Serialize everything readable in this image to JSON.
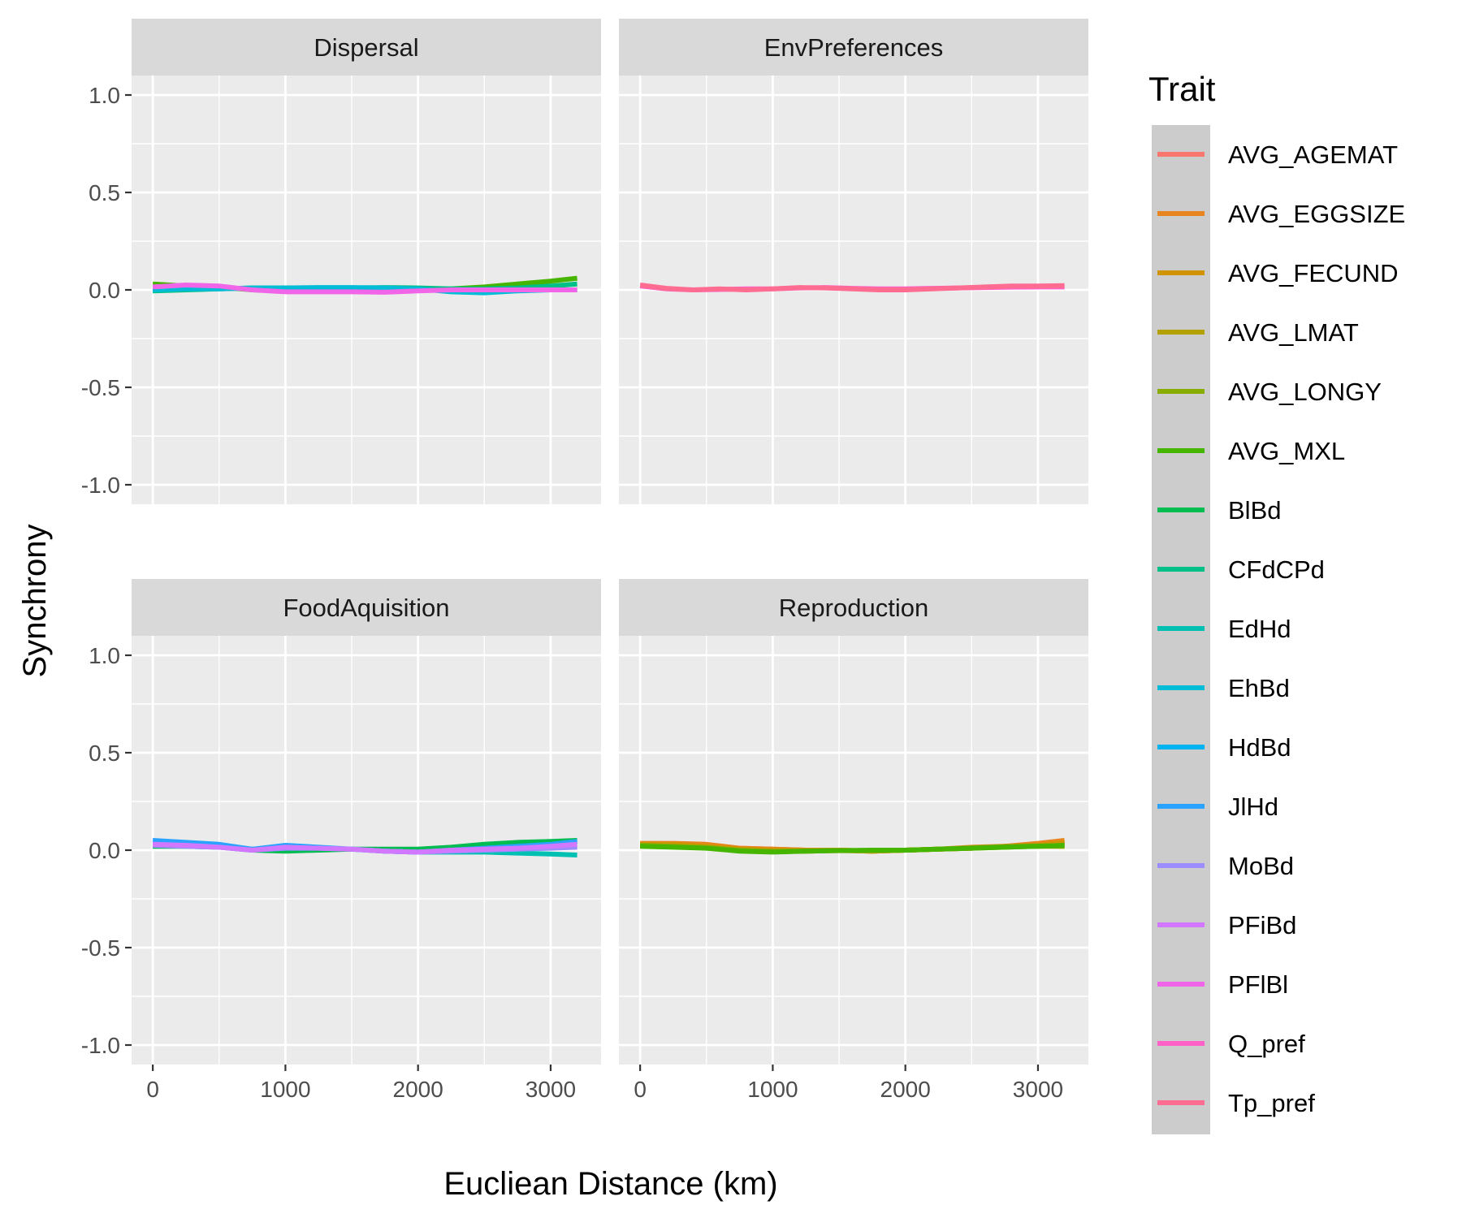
{
  "chart_data": {
    "type": "line",
    "xlabel": "Eucliean Distance (km)",
    "ylabel": "Synchrony",
    "xlim": [
      -160,
      3380
    ],
    "ylim": [
      -1.1,
      1.1
    ],
    "x_ticks": [
      0,
      1000,
      2000,
      3000
    ],
    "x_tick_labels": [
      "0",
      "1000",
      "2000",
      "3000"
    ],
    "y_ticks": [
      -1.0,
      -0.5,
      0.0,
      0.5,
      1.0
    ],
    "y_tick_labels": [
      "-1.0",
      "-0.5",
      "0.0",
      "0.5",
      "1.0"
    ],
    "grid": true,
    "legend": {
      "title": "Trait",
      "position": "right",
      "entries": [
        {
          "name": "AVG_AGEMAT",
          "color": "#F8766D"
        },
        {
          "name": "AVG_EGGSIZE",
          "color": "#E7851E"
        },
        {
          "name": "AVG_FECUND",
          "color": "#D09400"
        },
        {
          "name": "AVG_LMAT",
          "color": "#B2A100"
        },
        {
          "name": "AVG_LONGY",
          "color": "#89AC00"
        },
        {
          "name": "AVG_MXL",
          "color": "#45B500"
        },
        {
          "name": "BlBd",
          "color": "#00BC51"
        },
        {
          "name": "CFdCPd",
          "color": "#00C087"
        },
        {
          "name": "EdHd",
          "color": "#00C0B2"
        },
        {
          "name": "EhBd",
          "color": "#00BCD6"
        },
        {
          "name": "HdBd",
          "color": "#00B3F2"
        },
        {
          "name": "JlHd",
          "color": "#29A3FF"
        },
        {
          "name": "MoBd",
          "color": "#9C8DFF"
        },
        {
          "name": "PFiBd",
          "color": "#D277FF"
        },
        {
          "name": "PFlBl",
          "color": "#F166E8"
        },
        {
          "name": "Q_pref",
          "color": "#FF61C7"
        },
        {
          "name": "Tp_pref",
          "color": "#FF6C91"
        }
      ]
    },
    "panels": [
      {
        "title": "Dispersal",
        "series": [
          {
            "name": "AVG_MXL",
            "x": [
              0,
              250,
              500,
              750,
              1000,
              1250,
              1500,
              1750,
              2000,
              2250,
              2500,
              2750,
              3000,
              3200
            ],
            "y": [
              0.03,
              0.02,
              0.015,
              0.0,
              -0.005,
              -0.005,
              -0.002,
              0.0,
              0.002,
              0.005,
              0.015,
              0.03,
              0.045,
              0.06
            ]
          },
          {
            "name": "CFdCPd",
            "x": [
              0,
              250,
              500,
              750,
              1000,
              1250,
              1500,
              1750,
              2000,
              2250,
              2500,
              2750,
              3000,
              3200
            ],
            "y": [
              -0.005,
              0.0,
              0.005,
              0.01,
              0.01,
              0.01,
              0.01,
              0.012,
              0.01,
              0.005,
              0.005,
              0.01,
              0.02,
              0.03
            ]
          },
          {
            "name": "EhBd",
            "x": [
              0,
              250,
              500,
              750,
              1000,
              1250,
              1500,
              1750,
              2000,
              2250,
              2500,
              2750,
              3000,
              3200
            ],
            "y": [
              0.0,
              0.005,
              0.005,
              0.01,
              0.01,
              0.012,
              0.012,
              0.01,
              0.005,
              -0.01,
              -0.015,
              -0.005,
              0.0,
              0.0
            ]
          },
          {
            "name": "PFlBl",
            "x": [
              0,
              250,
              500,
              750,
              1000,
              1250,
              1500,
              1750,
              2000,
              2250,
              2500,
              2750,
              3000,
              3200
            ],
            "y": [
              0.015,
              0.025,
              0.02,
              0.0,
              -0.01,
              -0.01,
              -0.01,
              -0.012,
              -0.005,
              0.0,
              0.0,
              0.0,
              0.0,
              0.0
            ]
          }
        ]
      },
      {
        "title": "EnvPreferences",
        "series": [
          {
            "name": "Q_pref",
            "x": [
              0,
              200,
              400,
              600,
              800,
              1000,
              1200,
              1400,
              1600,
              1800,
              2000,
              2200,
              2400,
              2600,
              2800,
              3000,
              3200
            ],
            "y": [
              0.02,
              0.005,
              0.0,
              0.002,
              0.005,
              0.005,
              0.01,
              0.012,
              0.008,
              0.005,
              0.005,
              0.008,
              0.01,
              0.012,
              0.014,
              0.015,
              0.015
            ]
          },
          {
            "name": "Tp_pref",
            "x": [
              0,
              200,
              400,
              600,
              800,
              1000,
              1200,
              1400,
              1600,
              1800,
              2000,
              2200,
              2400,
              2600,
              2800,
              3000,
              3200
            ],
            "y": [
              0.025,
              0.008,
              0.0,
              0.005,
              0.0,
              0.005,
              0.012,
              0.01,
              0.005,
              0.0,
              0.0,
              0.005,
              0.01,
              0.015,
              0.02,
              0.02,
              0.022
            ]
          }
        ]
      },
      {
        "title": "FoodAquisition",
        "series": [
          {
            "name": "BlBd",
            "x": [
              0,
              250,
              500,
              750,
              1000,
              1250,
              1500,
              1750,
              2000,
              2250,
              2500,
              2750,
              3000,
              3200
            ],
            "y": [
              0.02,
              0.02,
              0.015,
              0.0,
              -0.005,
              0.0,
              0.005,
              0.005,
              0.005,
              0.015,
              0.03,
              0.04,
              0.045,
              0.05
            ]
          },
          {
            "name": "EdHd",
            "x": [
              0,
              250,
              500,
              750,
              1000,
              1250,
              1500,
              1750,
              2000,
              2250,
              2500,
              2750,
              3000,
              3200
            ],
            "y": [
              0.03,
              0.03,
              0.02,
              0.005,
              0.01,
              0.01,
              0.005,
              -0.005,
              -0.01,
              -0.01,
              -0.01,
              -0.015,
              -0.02,
              -0.025
            ]
          },
          {
            "name": "JlHd",
            "x": [
              0,
              250,
              500,
              750,
              1000,
              1250,
              1500,
              1750,
              2000,
              2250,
              2500,
              2750,
              3000,
              3200
            ],
            "y": [
              0.05,
              0.04,
              0.03,
              0.005,
              0.025,
              0.015,
              0.005,
              -0.005,
              -0.01,
              0.0,
              0.01,
              0.02,
              0.03,
              0.045
            ]
          },
          {
            "name": "MoBd",
            "x": [
              0,
              250,
              500,
              750,
              1000,
              1250,
              1500,
              1750,
              2000,
              2250,
              2500,
              2750,
              3000,
              3200
            ],
            "y": [
              0.025,
              0.02,
              0.015,
              0.0,
              0.01,
              0.01,
              0.005,
              -0.005,
              -0.01,
              -0.005,
              0.0,
              0.005,
              0.01,
              0.015
            ]
          },
          {
            "name": "PFiBd",
            "x": [
              0,
              250,
              500,
              750,
              1000,
              1250,
              1500,
              1750,
              2000,
              2250,
              2500,
              2750,
              3000,
              3200
            ],
            "y": [
              0.03,
              0.025,
              0.015,
              0.0,
              0.015,
              0.01,
              0.005,
              -0.005,
              -0.01,
              0.0,
              0.005,
              0.01,
              0.02,
              0.03
            ]
          }
        ]
      },
      {
        "title": "Reproduction",
        "series": [
          {
            "name": "AVG_AGEMAT",
            "x": [
              0,
              250,
              500,
              750,
              1000,
              1250,
              1500,
              1750,
              2000,
              2250,
              2500,
              2750,
              3000,
              3200
            ],
            "y": [
              0.03,
              0.03,
              0.025,
              0.01,
              0.005,
              0.0,
              0.0,
              -0.005,
              0.0,
              0.005,
              0.01,
              0.02,
              0.025,
              0.03
            ]
          },
          {
            "name": "AVG_EGGSIZE",
            "x": [
              0,
              250,
              500,
              750,
              1000,
              1250,
              1500,
              1750,
              2000,
              2250,
              2500,
              2750,
              3000,
              3200
            ],
            "y": [
              0.035,
              0.035,
              0.03,
              0.01,
              0.005,
              0.0,
              0.0,
              -0.005,
              0.0,
              0.005,
              0.015,
              0.02,
              0.035,
              0.05
            ]
          },
          {
            "name": "AVG_FECUND",
            "x": [
              0,
              250,
              500,
              750,
              1000,
              1250,
              1500,
              1750,
              2000,
              2250,
              2500,
              2750,
              3000,
              3200
            ],
            "y": [
              0.03,
              0.03,
              0.02,
              0.005,
              0.0,
              0.0,
              0.0,
              -0.005,
              0.0,
              0.005,
              0.01,
              0.02,
              0.025,
              0.04
            ]
          },
          {
            "name": "AVG_LMAT",
            "x": [
              0,
              250,
              500,
              750,
              1000,
              1250,
              1500,
              1750,
              2000,
              2250,
              2500,
              2750,
              3000,
              3200
            ],
            "y": [
              0.025,
              0.02,
              0.015,
              0.0,
              -0.005,
              -0.005,
              -0.002,
              -0.005,
              0.0,
              0.005,
              0.01,
              0.015,
              0.02,
              0.02
            ]
          },
          {
            "name": "AVG_LONGY",
            "x": [
              0,
              250,
              500,
              750,
              1000,
              1250,
              1500,
              1750,
              2000,
              2250,
              2500,
              2750,
              3000,
              3200
            ],
            "y": [
              0.025,
              0.02,
              0.012,
              0.0,
              -0.008,
              -0.005,
              -0.002,
              -0.002,
              0.0,
              0.005,
              0.012,
              0.018,
              0.022,
              0.02
            ]
          },
          {
            "name": "AVG_MXL",
            "x": [
              0,
              250,
              500,
              750,
              1000,
              1250,
              1500,
              1750,
              2000,
              2250,
              2500,
              2750,
              3000,
              3200
            ],
            "y": [
              0.02,
              0.015,
              0.01,
              -0.005,
              -0.01,
              -0.005,
              -0.002,
              0.0,
              0.0,
              0.005,
              0.01,
              0.015,
              0.02,
              0.025
            ]
          }
        ]
      }
    ]
  }
}
